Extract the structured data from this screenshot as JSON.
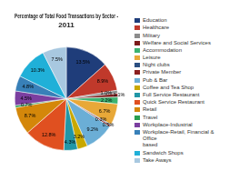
{
  "chart_data": {
    "type": "pie",
    "title": "Percentage of Total Food Transactions by Sector -\n2011",
    "categories": [
      "Education",
      "Healthcare",
      "Military",
      "Welfare and Social Services",
      "Accommodation",
      "Leisure",
      "Night clubs",
      "Private Member",
      "Pub & Bar",
      "Coffee and Tea Shop",
      "Full Service Restaurant",
      "Quick Service Restaurant",
      "Retail",
      "Travel",
      "Workplace-Industrial",
      "Workplace-Retail, Financial & Office\nbased",
      "Sandwich Shops",
      "Take Aways"
    ],
    "values": [
      13.5,
      8.9,
      1.0,
      1.1,
      2.2,
      6.7,
      0.3,
      0.5,
      9.2,
      3.2,
      4.3,
      12.8,
      8.7,
      0.7,
      4.5,
      4.8,
      10.3,
      7.5
    ],
    "value_labels": [
      "13.5%",
      "8.9%",
      "1.0%",
      "1.1%",
      "2.2%",
      "6.7%",
      "0.3%",
      "0.5%",
      "9.2%",
      "3.2%",
      "4.3%",
      "12.8%",
      "8.7%",
      "0.7%",
      "4.5%",
      "4.8%",
      "10.3%",
      "7.5%"
    ],
    "colors": [
      "#1f3d7a",
      "#c0392b",
      "#8c8c8c",
      "#7b1a1a",
      "#3cb371",
      "#e8a838",
      "#2b4f81",
      "#8b2020",
      "#6baed6",
      "#c8a800",
      "#2196a6",
      "#e05020",
      "#d4870a",
      "#2a9e4f",
      "#7b3fa0",
      "#3880b8",
      "#20b0d8",
      "#a8c8e0"
    ],
    "data_labels": true,
    "legend": "right"
  }
}
